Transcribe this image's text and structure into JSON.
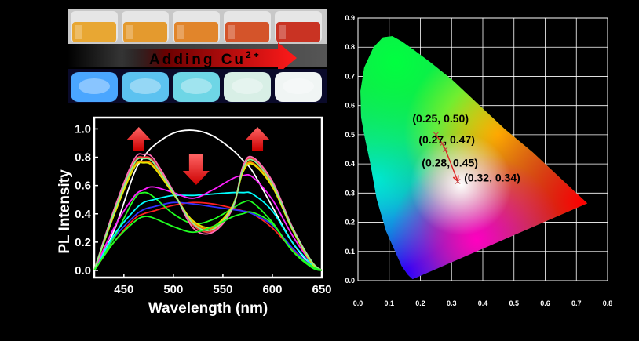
{
  "photos": {
    "arrow_text": "Adding Cu",
    "arrow_superscript": "2+",
    "top_vial_colors": [
      "#e8a733",
      "#e49a2e",
      "#e1852b",
      "#d4542a",
      "#c93323"
    ],
    "bottom_vial_colors": [
      "#4aa6ff",
      "#5cc2f0",
      "#6ed6e6",
      "#d8efe6",
      "#f0f5f4"
    ]
  },
  "chart_data": [
    {
      "type": "line",
      "xlabel": "Wavelength (nm)",
      "ylabel": "PL Intensity",
      "xlim": [
        420,
        650
      ],
      "ylim": [
        -0.05,
        1.08
      ],
      "xticks": [
        450,
        500,
        550,
        600,
        650
      ],
      "yticks": [
        0.0,
        0.2,
        0.4,
        0.6,
        0.8,
        1.0
      ],
      "x": [
        420,
        440,
        460,
        470,
        480,
        500,
        520,
        540,
        560,
        570,
        580,
        600,
        620,
        640,
        650
      ],
      "series": [
        {
          "color": "#ffffff",
          "values": [
            0.0,
            0.28,
            0.68,
            0.8,
            0.88,
            0.97,
            0.99,
            0.95,
            0.85,
            0.78,
            0.7,
            0.45,
            0.2,
            0.03,
            0.0
          ]
        },
        {
          "color": "#ff2020",
          "values": [
            0.0,
            0.2,
            0.36,
            0.4,
            0.42,
            0.46,
            0.48,
            0.47,
            0.44,
            0.42,
            0.4,
            0.3,
            0.15,
            0.03,
            0.0
          ]
        },
        {
          "color": "#3030ff",
          "values": [
            0.0,
            0.23,
            0.38,
            0.43,
            0.45,
            0.48,
            0.47,
            0.45,
            0.43,
            0.42,
            0.4,
            0.32,
            0.16,
            0.03,
            0.0
          ]
        },
        {
          "color": "#20ff20",
          "values": [
            0.0,
            0.23,
            0.5,
            0.55,
            0.52,
            0.4,
            0.33,
            0.36,
            0.44,
            0.48,
            0.48,
            0.34,
            0.14,
            0.02,
            0.0
          ]
        },
        {
          "color": "#00ffff",
          "values": [
            0.0,
            0.25,
            0.42,
            0.48,
            0.5,
            0.53,
            0.53,
            0.54,
            0.55,
            0.55,
            0.54,
            0.42,
            0.2,
            0.04,
            0.0
          ]
        },
        {
          "color": "#ff20ff",
          "values": [
            0.0,
            0.3,
            0.52,
            0.57,
            0.59,
            0.55,
            0.51,
            0.57,
            0.65,
            0.67,
            0.66,
            0.5,
            0.25,
            0.05,
            0.0
          ]
        },
        {
          "color": "#ff8c00",
          "values": [
            0.0,
            0.4,
            0.73,
            0.77,
            0.74,
            0.55,
            0.34,
            0.3,
            0.45,
            0.7,
            0.76,
            0.6,
            0.3,
            0.06,
            0.0
          ]
        },
        {
          "color": "#ff4040",
          "values": [
            0.0,
            0.42,
            0.76,
            0.8,
            0.77,
            0.55,
            0.32,
            0.28,
            0.45,
            0.72,
            0.79,
            0.62,
            0.3,
            0.06,
            0.0
          ]
        },
        {
          "color": "#ff69b4",
          "values": [
            0.0,
            0.43,
            0.78,
            0.82,
            0.79,
            0.56,
            0.3,
            0.27,
            0.44,
            0.73,
            0.8,
            0.63,
            0.31,
            0.06,
            0.0
          ]
        },
        {
          "color": "#e6e600",
          "values": [
            0.0,
            0.39,
            0.72,
            0.76,
            0.73,
            0.54,
            0.35,
            0.31,
            0.46,
            0.69,
            0.75,
            0.59,
            0.29,
            0.05,
            0.0
          ]
        },
        {
          "color": "#90ee90",
          "values": [
            0.0,
            0.41,
            0.75,
            0.79,
            0.76,
            0.55,
            0.33,
            0.29,
            0.45,
            0.71,
            0.78,
            0.61,
            0.3,
            0.06,
            0.0
          ]
        },
        {
          "color": "#20ff20",
          "values": [
            0.0,
            0.2,
            0.34,
            0.38,
            0.37,
            0.31,
            0.27,
            0.31,
            0.38,
            0.4,
            0.41,
            0.33,
            0.14,
            0.03,
            0.0
          ]
        }
      ]
    },
    {
      "type": "scatter",
      "xlim": [
        0.0,
        0.8
      ],
      "ylim": [
        0.0,
        0.9
      ],
      "xticks": [
        0.0,
        0.1,
        0.2,
        0.3,
        0.4,
        0.5,
        0.6,
        0.7,
        0.8
      ],
      "yticks": [
        0.0,
        0.1,
        0.2,
        0.3,
        0.4,
        0.5,
        0.6,
        0.7,
        0.8,
        0.9
      ],
      "grid": true,
      "points": [
        {
          "x": 0.25,
          "y": 0.5,
          "label": "(0.25, 0.50)"
        },
        {
          "x": 0.27,
          "y": 0.47,
          "label": "(0.27, 0.47)"
        },
        {
          "x": 0.28,
          "y": 0.45,
          "label": "(0.28, 0.45)"
        },
        {
          "x": 0.32,
          "y": 0.34,
          "label": "(0.32, 0.34)"
        }
      ],
      "locus": [
        [
          0.175,
          0.005
        ],
        [
          0.16,
          0.02
        ],
        [
          0.14,
          0.05
        ],
        [
          0.115,
          0.11
        ],
        [
          0.09,
          0.17
        ],
        [
          0.06,
          0.28
        ],
        [
          0.04,
          0.4
        ],
        [
          0.02,
          0.5
        ],
        [
          0.01,
          0.56
        ],
        [
          0.008,
          0.65
        ],
        [
          0.02,
          0.73
        ],
        [
          0.05,
          0.8
        ],
        [
          0.08,
          0.834
        ],
        [
          0.11,
          0.838
        ],
        [
          0.14,
          0.82
        ],
        [
          0.18,
          0.79
        ],
        [
          0.23,
          0.75
        ],
        [
          0.3,
          0.69
        ],
        [
          0.38,
          0.61
        ],
        [
          0.47,
          0.52
        ],
        [
          0.56,
          0.44
        ],
        [
          0.64,
          0.36
        ],
        [
          0.735,
          0.265
        ]
      ]
    }
  ]
}
